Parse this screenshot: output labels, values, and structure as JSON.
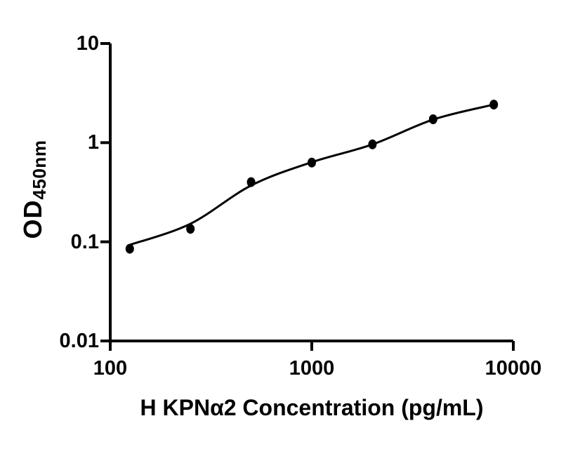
{
  "page": {
    "background_color": "#ffffff",
    "kind": "elisa-standard-curve-figure"
  },
  "chart_data": {
    "type": "scatter",
    "title": "",
    "xlabel": "H KPNα2 Concentration (pg/mL)",
    "ylabel": "OD450nm",
    "ylabel_main": "OD",
    "ylabel_sub": "450nm",
    "x_scale": "log",
    "y_scale": "log",
    "xlim": [
      100,
      10000
    ],
    "ylim": [
      0.01,
      10
    ],
    "x_ticks": [
      100,
      1000,
      10000
    ],
    "x_tick_labels": [
      "100",
      "1000",
      "10000"
    ],
    "y_ticks": [
      10,
      1,
      0.1,
      0.01
    ],
    "y_tick_labels": [
      "10",
      "1",
      "0.1",
      "0.01"
    ],
    "grid": false,
    "legend": "none",
    "series": [
      {
        "name": "standard-points",
        "marker": "filled-circle",
        "x": [
          125,
          250,
          500,
          1000,
          2000,
          4000,
          8000
        ],
        "y": [
          0.085,
          0.135,
          0.4,
          0.63,
          0.96,
          1.72,
          2.42
        ]
      }
    ],
    "fit_curve": {
      "name": "fitted-curve",
      "x": [
        125,
        250,
        500,
        1000,
        2000,
        4000,
        8000
      ],
      "y": [
        0.093,
        0.152,
        0.37,
        0.635,
        0.96,
        1.71,
        2.42
      ]
    },
    "colors": {
      "marker": "#000000",
      "line": "#000000",
      "axis": "#000000",
      "text": "#000000",
      "background": "#ffffff"
    }
  }
}
